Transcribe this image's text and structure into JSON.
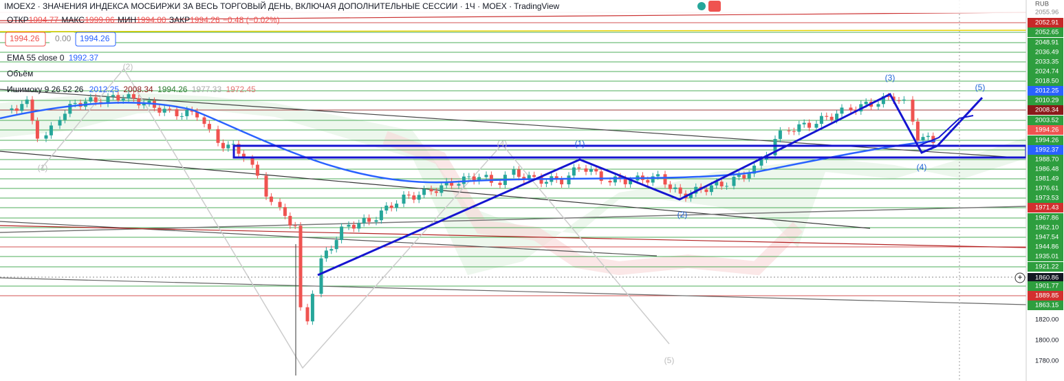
{
  "header": {
    "title": "IMOEX2 · ЗНАЧЕНИЯ ИНДЕКСА МОСБИРЖИ ЗА ВЕСЬ ТОРГОВЫЙ ДЕНЬ, ВКЛЮЧАЯ ДОПОЛНИТЕЛЬНЫЕ СЕССИИ · 1Ч · MOEX · TradingView"
  },
  "legend": {
    "ohlc": [
      {
        "label": "ОТКР",
        "value": "1994.77"
      },
      {
        "label": "МАКС",
        "value": "1999.06"
      },
      {
        "label": "МИН",
        "value": "1994.00"
      },
      {
        "label": "ЗАКР",
        "value": "1994.26"
      }
    ],
    "change": "−0.48 (−0.02%)",
    "buttons": [
      "1994.26",
      "0.00",
      "1994.26"
    ],
    "ema": {
      "name": "EMA 55 close 0",
      "value": "1992.37"
    },
    "volume": "Объём",
    "ichimoku": {
      "name": "Ишимоку 9 26 52 26",
      "values": [
        "2012.25",
        "2008.34",
        "1994.26",
        "1977.33",
        "1972.45"
      ]
    }
  },
  "price_scale": {
    "currency": "RUB",
    "labels": [
      "2055.96",
      "2052.91",
      "2052.65",
      "2048.91",
      "2036.49",
      "2033.35",
      "2024.74",
      "2018.50",
      "2012.25",
      "2010.29",
      "2008.34",
      "2003.52",
      "1994.26",
      "1994.26",
      "1992.37",
      "1988.70",
      "1986.48",
      "1981.49",
      "1976.61",
      "1973.53",
      "1971.43",
      "1967.86",
      "1962.10",
      "1947.54",
      "1944.86",
      "1935.01",
      "1921.22",
      "1860.86",
      "1901.77",
      "1889.85",
      "1863.15",
      "1820.00",
      "1800.00",
      "1780.00"
    ]
  },
  "wave_labels": [
    "(2)",
    "(1)",
    "(4)",
    "(5)",
    "(1)",
    "(2)",
    "(3)",
    "(4)",
    "(5)"
  ]
}
